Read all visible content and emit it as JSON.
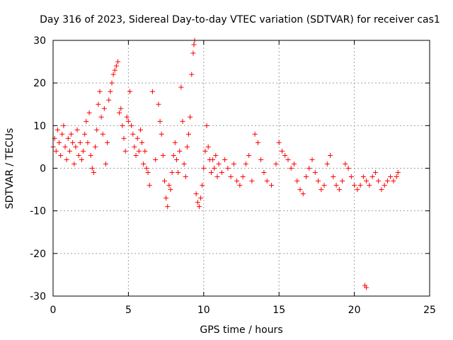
{
  "chart_data": {
    "type": "scatter",
    "title": "Day 316 of 2023, Sidereal Day-to-day VTEC variation (SDTVAR) for receiver cas1",
    "xlabel": "GPS time / hours",
    "ylabel": "SDTVAR / TECUs",
    "xlim": [
      0,
      25
    ],
    "ylim": [
      -30,
      30
    ],
    "x_ticks": [
      0,
      5,
      10,
      15,
      20,
      25
    ],
    "y_ticks": [
      -30,
      -20,
      -10,
      0,
      10,
      20,
      30
    ],
    "x_tick_labels": [
      "0",
      "5",
      "10",
      "15",
      "20",
      "25"
    ],
    "y_tick_labels": [
      "-30",
      "-20",
      "-10",
      "0",
      "10",
      "20",
      "30"
    ],
    "grid": true,
    "marker": "+",
    "color": "#ff0000",
    "series": [
      {
        "name": "cas1",
        "points": [
          [
            0.0,
            5
          ],
          [
            0.1,
            7
          ],
          [
            0.2,
            4
          ],
          [
            0.3,
            9
          ],
          [
            0.4,
            6
          ],
          [
            0.5,
            3
          ],
          [
            0.6,
            8
          ],
          [
            0.7,
            10
          ],
          [
            0.8,
            5
          ],
          [
            0.9,
            2
          ],
          [
            1.0,
            7
          ],
          [
            1.1,
            4
          ],
          [
            1.2,
            8
          ],
          [
            1.3,
            6
          ],
          [
            1.4,
            1
          ],
          [
            1.5,
            5
          ],
          [
            1.6,
            9
          ],
          [
            1.7,
            3
          ],
          [
            1.8,
            6
          ],
          [
            1.9,
            2
          ],
          [
            2.0,
            4
          ],
          [
            2.1,
            8
          ],
          [
            2.2,
            11
          ],
          [
            2.3,
            6
          ],
          [
            2.4,
            13
          ],
          [
            2.5,
            3
          ],
          [
            2.6,
            0
          ],
          [
            2.7,
            -1
          ],
          [
            2.8,
            5
          ],
          [
            2.9,
            9
          ],
          [
            3.0,
            15
          ],
          [
            3.1,
            18
          ],
          [
            3.2,
            12
          ],
          [
            3.3,
            8
          ],
          [
            3.4,
            14
          ],
          [
            3.5,
            1
          ],
          [
            3.6,
            6
          ],
          [
            3.7,
            16
          ],
          [
            3.8,
            18
          ],
          [
            3.9,
            20
          ],
          [
            4.0,
            22
          ],
          [
            4.1,
            23
          ],
          [
            4.2,
            24
          ],
          [
            4.3,
            25
          ],
          [
            4.4,
            13
          ],
          [
            4.5,
            14
          ],
          [
            4.6,
            10
          ],
          [
            4.7,
            7
          ],
          [
            4.8,
            4
          ],
          [
            4.9,
            12
          ],
          [
            5.0,
            11
          ],
          [
            5.1,
            18
          ],
          [
            5.2,
            10
          ],
          [
            5.3,
            8
          ],
          [
            5.4,
            5
          ],
          [
            5.5,
            3
          ],
          [
            5.6,
            7
          ],
          [
            5.7,
            4
          ],
          [
            5.8,
            9
          ],
          [
            5.9,
            6
          ],
          [
            6.0,
            1
          ],
          [
            6.1,
            4
          ],
          [
            6.2,
            0
          ],
          [
            6.3,
            -1
          ],
          [
            6.4,
            -4
          ],
          [
            6.6,
            18
          ],
          [
            6.8,
            2
          ],
          [
            7.0,
            15
          ],
          [
            7.1,
            11
          ],
          [
            7.2,
            8
          ],
          [
            7.3,
            3
          ],
          [
            7.4,
            -3
          ],
          [
            7.5,
            -7
          ],
          [
            7.6,
            -9
          ],
          [
            7.7,
            -4
          ],
          [
            7.8,
            -5
          ],
          [
            7.9,
            -1
          ],
          [
            8.0,
            3
          ],
          [
            8.1,
            6
          ],
          [
            8.2,
            2
          ],
          [
            8.3,
            -1
          ],
          [
            8.4,
            4
          ],
          [
            8.5,
            19
          ],
          [
            8.6,
            11
          ],
          [
            8.7,
            1
          ],
          [
            8.8,
            -2
          ],
          [
            8.9,
            5
          ],
          [
            9.0,
            8
          ],
          [
            9.1,
            12
          ],
          [
            9.2,
            22
          ],
          [
            9.3,
            27
          ],
          [
            9.35,
            29
          ],
          [
            9.4,
            30
          ],
          [
            9.5,
            -6
          ],
          [
            9.6,
            -8
          ],
          [
            9.7,
            -9
          ],
          [
            9.8,
            -7
          ],
          [
            9.9,
            -4
          ],
          [
            10.0,
            0
          ],
          [
            10.1,
            4
          ],
          [
            10.2,
            10
          ],
          [
            10.3,
            5
          ],
          [
            10.4,
            2
          ],
          [
            10.5,
            -1
          ],
          [
            10.6,
            2
          ],
          [
            10.7,
            0
          ],
          [
            10.8,
            3
          ],
          [
            10.9,
            -2
          ],
          [
            11.0,
            1
          ],
          [
            11.2,
            -1
          ],
          [
            11.4,
            2
          ],
          [
            11.6,
            0
          ],
          [
            11.8,
            -2
          ],
          [
            12.0,
            1
          ],
          [
            12.2,
            -3
          ],
          [
            12.4,
            -4
          ],
          [
            12.6,
            -2
          ],
          [
            12.8,
            1
          ],
          [
            13.0,
            3
          ],
          [
            13.2,
            -3
          ],
          [
            13.4,
            8
          ],
          [
            13.6,
            6
          ],
          [
            13.8,
            2
          ],
          [
            14.0,
            -1
          ],
          [
            14.2,
            -3
          ],
          [
            14.5,
            -4
          ],
          [
            14.8,
            1
          ],
          [
            15.0,
            6
          ],
          [
            15.2,
            4
          ],
          [
            15.4,
            3
          ],
          [
            15.6,
            2
          ],
          [
            15.8,
            0
          ],
          [
            16.0,
            1
          ],
          [
            16.2,
            -3
          ],
          [
            16.4,
            -5
          ],
          [
            16.6,
            -6
          ],
          [
            16.8,
            -2
          ],
          [
            17.0,
            0
          ],
          [
            17.2,
            2
          ],
          [
            17.4,
            -1
          ],
          [
            17.6,
            -3
          ],
          [
            17.8,
            -5
          ],
          [
            18.0,
            -4
          ],
          [
            18.2,
            1
          ],
          [
            18.4,
            3
          ],
          [
            18.6,
            -2
          ],
          [
            18.8,
            -4
          ],
          [
            19.0,
            -5
          ],
          [
            19.2,
            -3
          ],
          [
            19.4,
            1
          ],
          [
            19.6,
            0
          ],
          [
            19.8,
            -2
          ],
          [
            20.0,
            -4
          ],
          [
            20.2,
            -5
          ],
          [
            20.4,
            -4
          ],
          [
            20.6,
            -2
          ],
          [
            20.8,
            -3
          ],
          [
            20.7,
            -27.5
          ],
          [
            20.8,
            -28
          ],
          [
            21.0,
            -4
          ],
          [
            21.2,
            -2
          ],
          [
            21.4,
            -1
          ],
          [
            21.6,
            -3
          ],
          [
            21.8,
            -5
          ],
          [
            22.0,
            -4
          ],
          [
            22.2,
            -3
          ],
          [
            22.4,
            -2
          ],
          [
            22.6,
            -3
          ],
          [
            22.8,
            -2
          ],
          [
            22.9,
            -1
          ]
        ]
      }
    ]
  }
}
